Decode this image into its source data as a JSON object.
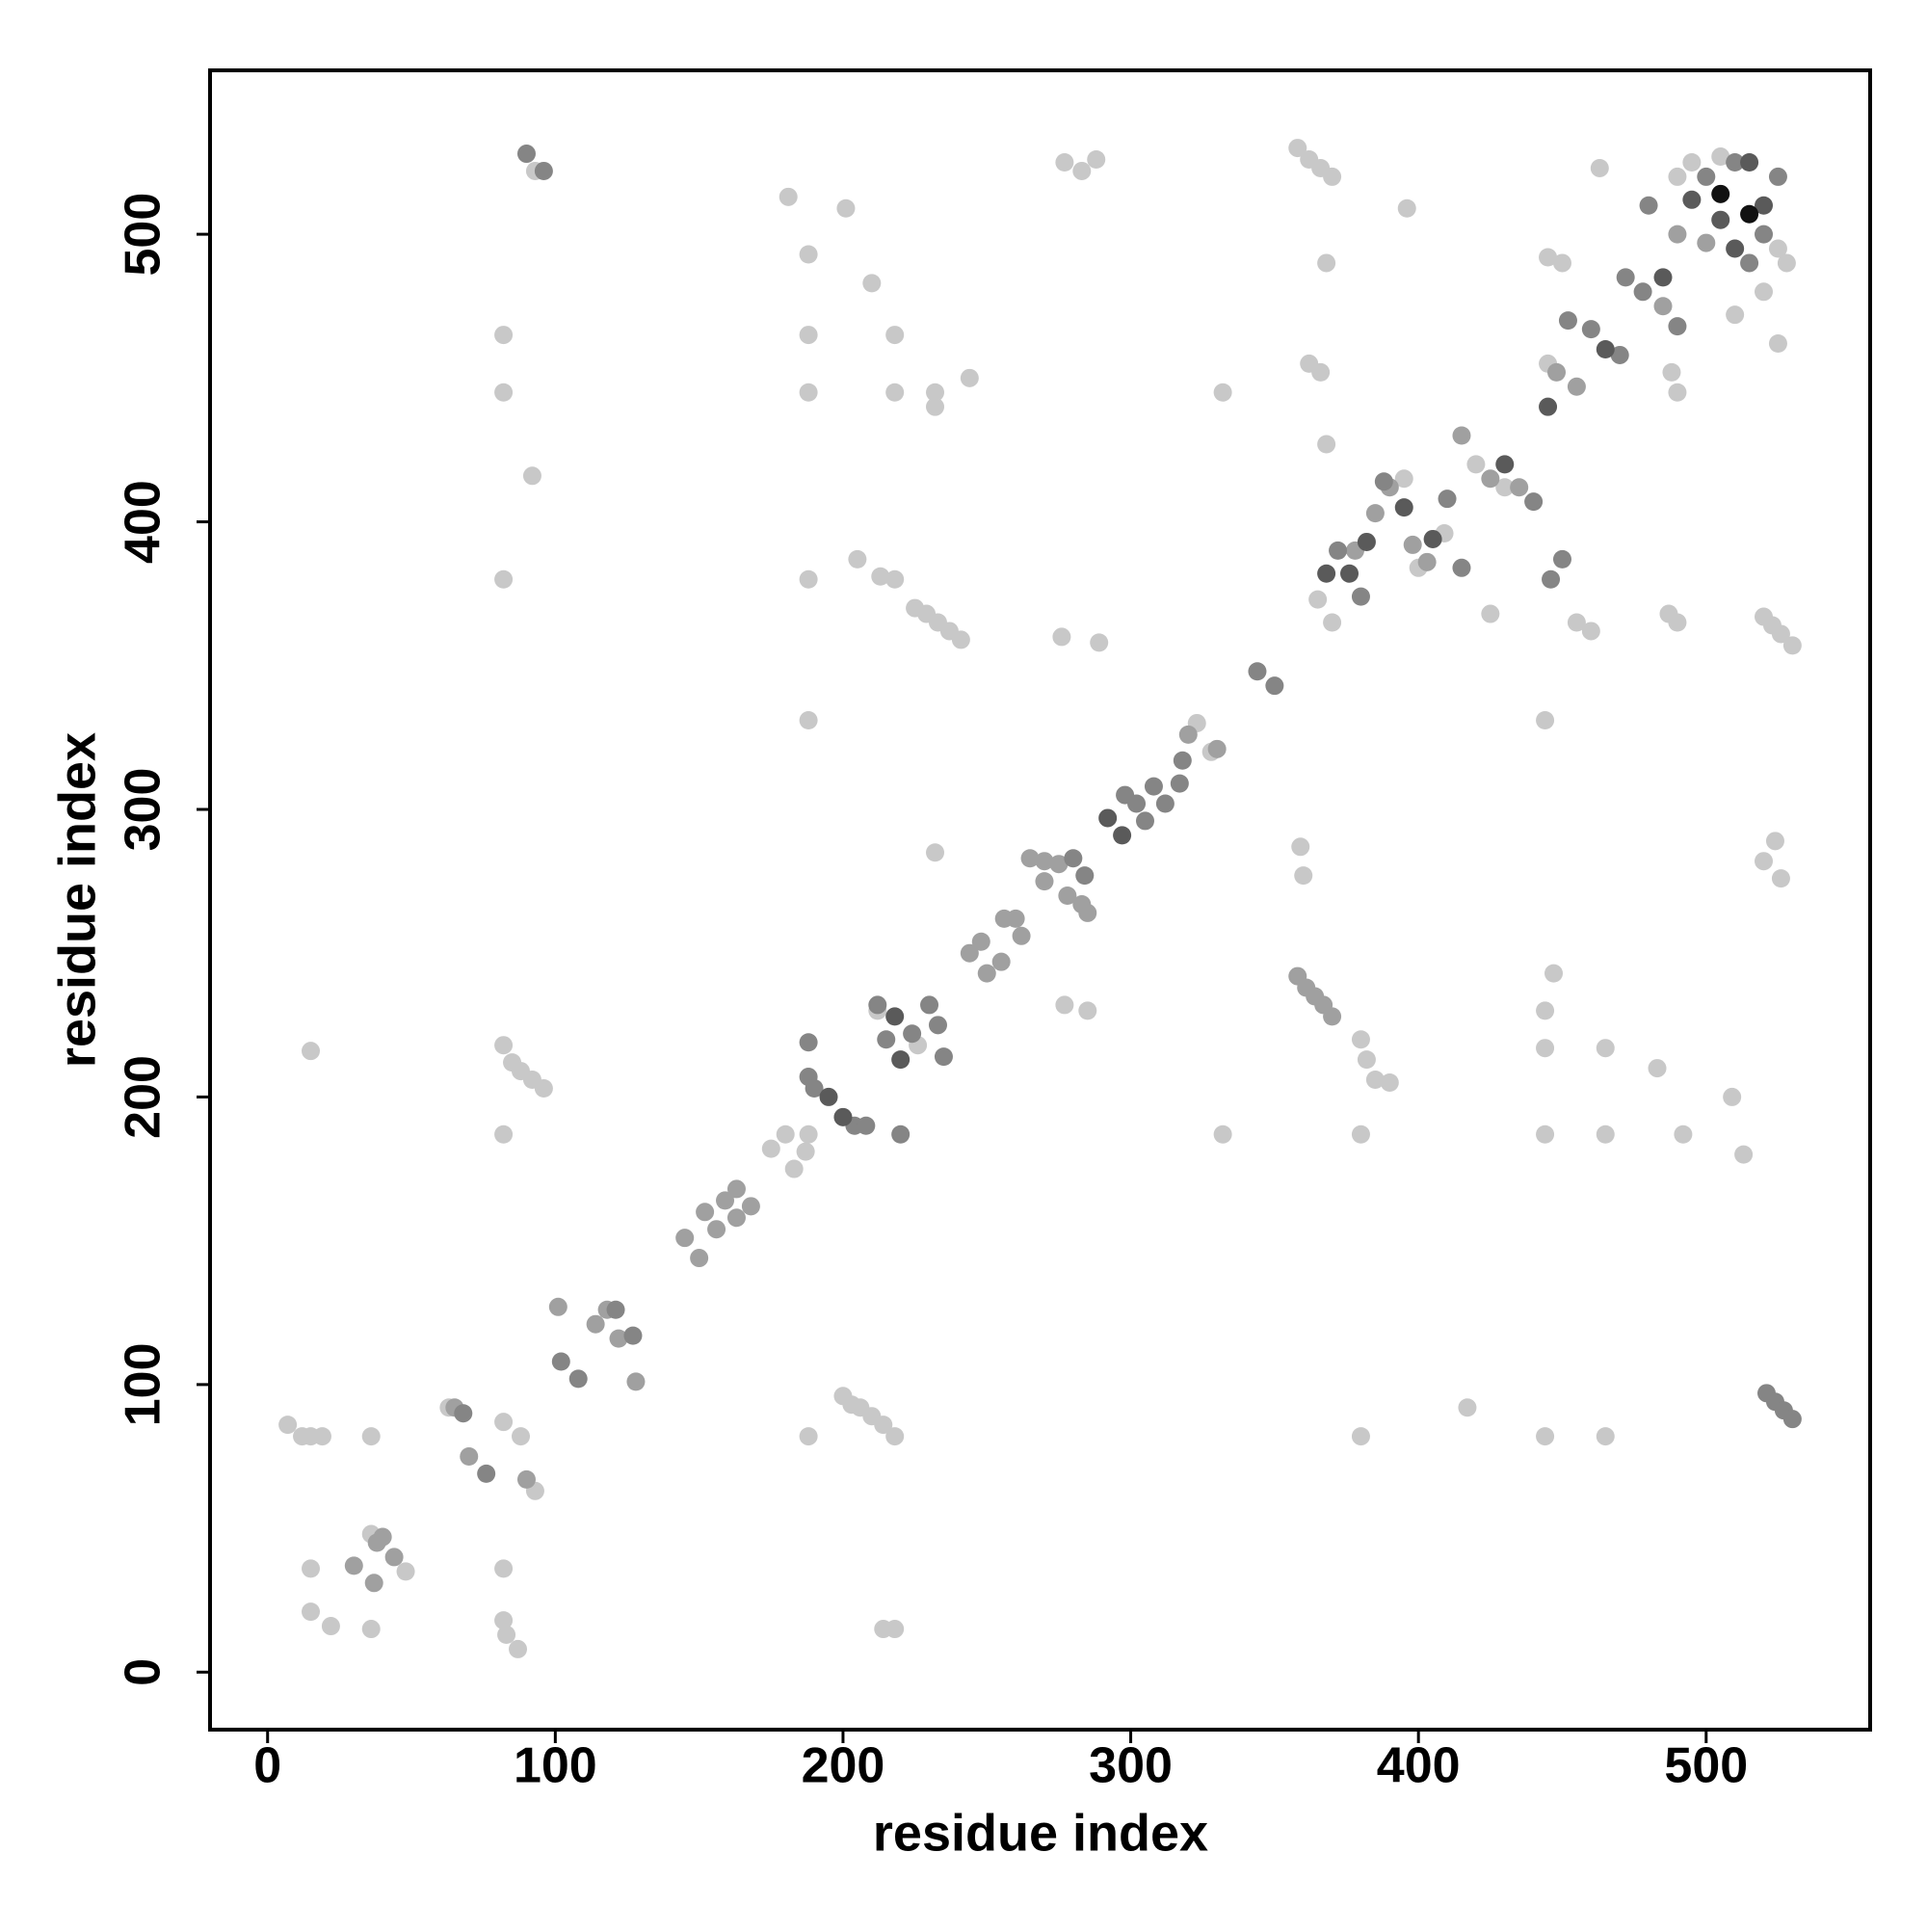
{
  "chart_data": {
    "type": "scatter",
    "xlabel": "residue index",
    "ylabel": "residue index",
    "xlim": [
      -20,
      557
    ],
    "ylim": [
      -20,
      557
    ],
    "xticks": [
      0,
      100,
      200,
      300,
      400,
      500
    ],
    "yticks": [
      0,
      100,
      200,
      300,
      400,
      500
    ],
    "grid": false,
    "series": [
      {
        "color": "#c8c8c8",
        "x": [
          48,
          36,
          63,
          7,
          12,
          15,
          19,
          36,
          82,
          88,
          15,
          15,
          22,
          36,
          82,
          82,
          83,
          87,
          214,
          218,
          93,
          175,
          180,
          183,
          187,
          200,
          203,
          206,
          210,
          214,
          218,
          188,
          15,
          82,
          85,
          88,
          92,
          96,
          82,
          188,
          332,
          380,
          444,
          465,
          492,
          509,
          513,
          483,
          444,
          447,
          444,
          465,
          380,
          444,
          465,
          417,
          277,
          285,
          380,
          382,
          385,
          390,
          232,
          359,
          360,
          520,
          524,
          526,
          188,
          276,
          289,
          225,
          229,
          233,
          237,
          241,
          520,
          523,
          526,
          530,
          82,
          188,
          205,
          213,
          218,
          92,
          82,
          82,
          188,
          218,
          188,
          218,
          232,
          232,
          244,
          332,
          181,
          201,
          188,
          210,
          396,
          362,
          366,
          368,
          368,
          277,
          283,
          288,
          358,
          362,
          366,
          370,
          93,
          445,
          450,
          463,
          488,
          490,
          487,
          490,
          455,
          460,
          425,
          525,
          444,
          409,
          323,
          328,
          400,
          395,
          420,
          430,
          445,
          505,
          495,
          490,
          525,
          528,
          520,
          510,
          370,
          365,
          212,
          226
        ],
        "values": [
          35,
          48,
          92,
          86,
          82,
          82,
          82,
          82,
          87,
          82,
          36,
          21,
          16,
          15,
          36,
          18,
          13,
          8,
          15,
          15,
          63,
          182,
          187,
          175,
          181,
          96,
          93,
          92,
          89,
          86,
          82,
          82,
          216,
          218,
          212,
          209,
          206,
          203,
          187,
          187,
          187,
          187,
          187,
          187,
          187,
          200,
          180,
          210,
          230,
          243,
          217,
          217,
          82,
          82,
          82,
          92,
          232,
          230,
          220,
          213,
          206,
          205,
          285,
          287,
          277,
          282,
          289,
          276,
          331,
          360,
          358,
          370,
          368,
          365,
          362,
          359,
          367,
          364,
          361,
          357,
          380,
          380,
          387,
          381,
          380,
          416,
          465,
          445,
          465,
          465,
          445,
          445,
          445,
          440,
          450,
          445,
          513,
          509,
          493,
          483,
          509,
          455,
          452,
          490,
          427,
          525,
          522,
          526,
          530,
          526,
          523,
          520,
          522,
          492,
          490,
          523,
          452,
          445,
          368,
          365,
          365,
          362,
          368,
          462,
          331,
          396,
          330,
          320,
          384,
          415,
          420,
          412,
          455,
          527,
          525,
          520,
          495,
          490,
          480,
          472,
          365,
          373,
          230,
          218
        ]
      },
      {
        "color": "#a0a0a0",
        "x": [
          30,
          37,
          40,
          44,
          38,
          65,
          70,
          90,
          145,
          150,
          152,
          156,
          159,
          163,
          163,
          168,
          101,
          114,
          118,
          122,
          128,
          244,
          250,
          248,
          255,
          256,
          260,
          262,
          265,
          270,
          275,
          270,
          278,
          283,
          285,
          320,
          330,
          358,
          361,
          364,
          367,
          370,
          385,
          390,
          398,
          415,
          425,
          435,
          448,
          455,
          485,
          500,
          490,
          378,
          403
        ],
        "values": [
          37,
          31,
          47,
          40,
          45,
          92,
          75,
          67,
          151,
          144,
          160,
          154,
          164,
          168,
          158,
          162,
          127,
          121,
          126,
          116,
          101,
          250,
          243,
          254,
          247,
          262,
          262,
          256,
          283,
          282,
          281,
          275,
          270,
          267,
          264,
          326,
          321,
          242,
          238,
          235,
          232,
          228,
          403,
          412,
          392,
          430,
          415,
          412,
          452,
          447,
          475,
          497,
          500,
          390,
          386
        ]
      },
      {
        "color": "#858585",
        "x": [
          68,
          76,
          102,
          108,
          121,
          127,
          188,
          188,
          190,
          204,
          208,
          220,
          212,
          215,
          224,
          230,
          233,
          235,
          280,
          284,
          298,
          302,
          305,
          308,
          312,
          317,
          318,
          344,
          350,
          521,
          524,
          527,
          530,
          90,
          96,
          372,
          380,
          388,
          410,
          415,
          440,
          452,
          460,
          470,
          472,
          478,
          490,
          500,
          510,
          520,
          525,
          515,
          480,
          446,
          450
        ],
        "values": [
          90,
          69,
          108,
          102,
          126,
          117,
          219,
          207,
          203,
          190,
          190,
          187,
          232,
          220,
          222,
          232,
          225,
          214,
          283,
          277,
          305,
          302,
          296,
          308,
          302,
          309,
          317,
          348,
          343,
          97,
          94,
          91,
          88,
          528,
          522,
          390,
          374,
          414,
          408,
          384,
          407,
          470,
          467,
          458,
          485,
          480,
          468,
          520,
          525,
          500,
          520,
          490,
          510,
          380,
          387
        ]
      },
      {
        "color": "#5a5a5a",
        "x": [
          195,
          200,
          218,
          220,
          292,
          297,
          368,
          376,
          382,
          395,
          405,
          430,
          445,
          465,
          495,
          505,
          515,
          520,
          510,
          485
        ],
        "values": [
          200,
          193,
          228,
          213,
          297,
          291,
          382,
          382,
          393,
          405,
          394,
          420,
          440,
          460,
          512,
          505,
          525,
          510,
          495,
          485
        ]
      },
      {
        "color": "#111111",
        "x": [
          505,
          515
        ],
        "values": [
          514,
          507
        ]
      }
    ]
  }
}
